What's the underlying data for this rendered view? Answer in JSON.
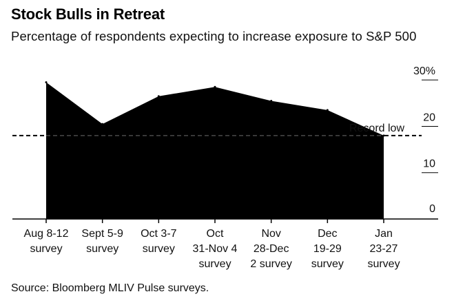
{
  "title": "Stock Bulls in Retreat",
  "subtitle": "Percentage of respondents expecting to increase exposure to S&P 500",
  "source": "Source: Bloomberg MLIV Pulse surveys.",
  "chart_data": {
    "type": "area",
    "categories": [
      [
        "Aug 8-12",
        "survey"
      ],
      [
        "Sept 5-9",
        "survey"
      ],
      [
        "Oct 3-7",
        "survey"
      ],
      [
        "Oct",
        "31-Nov 4",
        "survey"
      ],
      [
        "Nov",
        "28-Dec",
        "2 survey"
      ],
      [
        "Dec",
        "19-29",
        "survey"
      ],
      [
        "Jan",
        "23-27",
        "survey"
      ]
    ],
    "values": [
      29.5,
      20.5,
      26.5,
      28.5,
      25.5,
      23.5,
      18
    ],
    "ylim": [
      0,
      33
    ],
    "yticks": [
      {
        "value": 0,
        "label": "0"
      },
      {
        "value": 10,
        "label": "10"
      },
      {
        "value": 20,
        "label": "20"
      },
      {
        "value": 30,
        "label": "30%"
      }
    ],
    "reference_line": {
      "value": 18,
      "label": "Record low",
      "style": "dashed"
    },
    "fill_color": "#000000",
    "grid": false
  }
}
